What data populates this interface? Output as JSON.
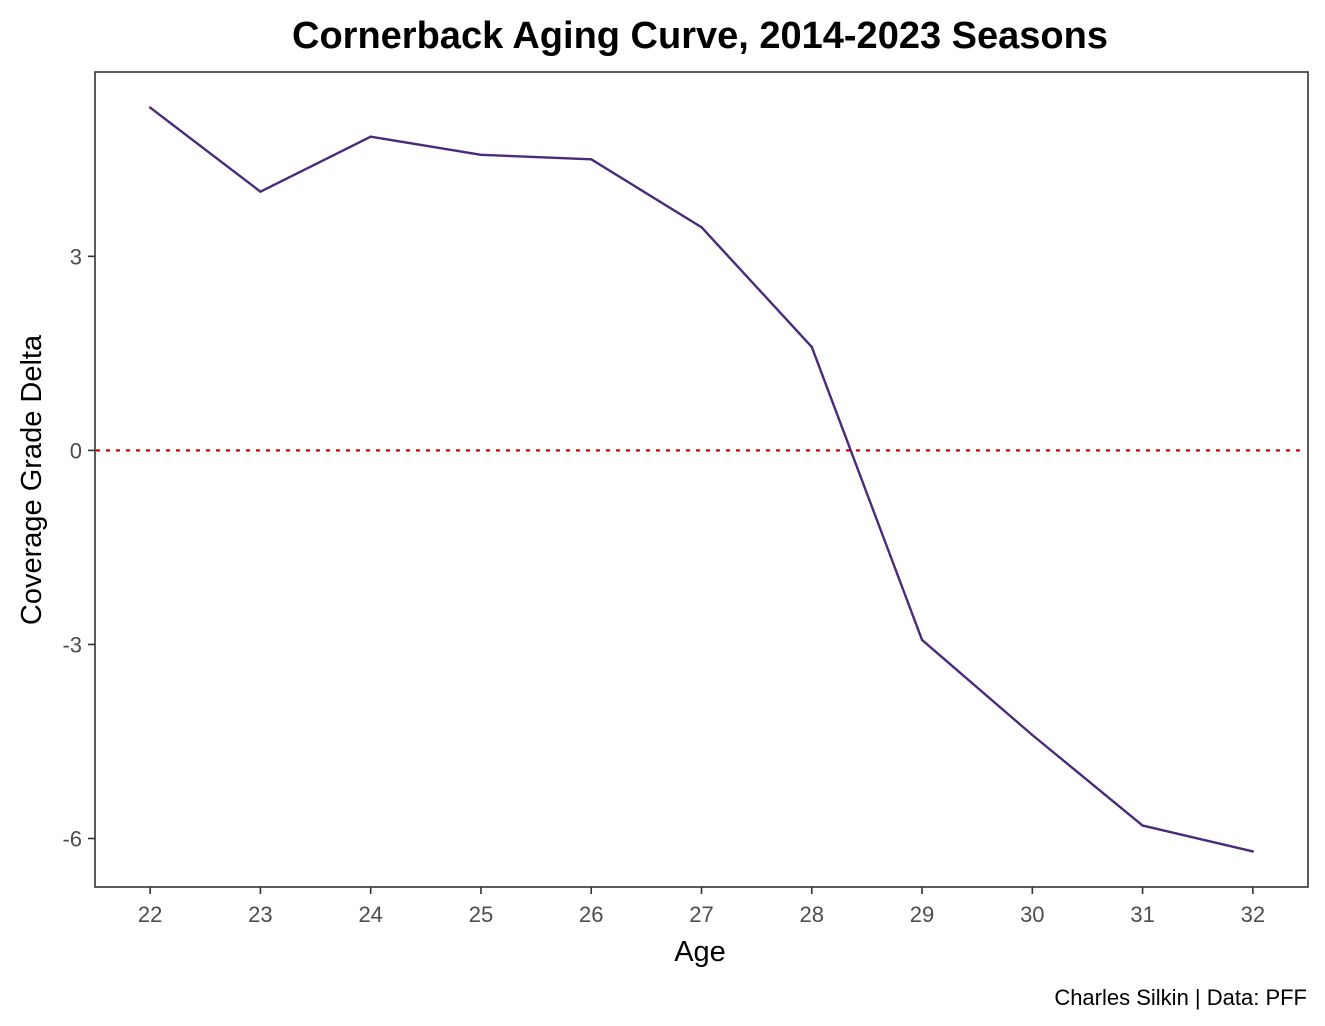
{
  "chart_data": {
    "type": "line",
    "title": "Cornerback Aging Curve, 2014-2023 Seasons",
    "xlabel": "Age",
    "ylabel": "Coverage Grade Delta",
    "caption": "Charles Silkin | Data: PFF",
    "x": [
      22,
      23,
      24,
      25,
      26,
      27,
      28,
      29,
      30,
      31,
      32
    ],
    "series": [
      {
        "values": [
          5.3,
          4.0,
          4.85,
          4.57,
          4.5,
          3.45,
          1.6,
          -2.93,
          -4.4,
          -5.8,
          -6.2
        ],
        "color": "#4b2a7b"
      }
    ],
    "xticks": [
      "22",
      "23",
      "24",
      "25",
      "26",
      "27",
      "28",
      "29",
      "30",
      "31",
      "32"
    ],
    "yticks": [
      "-6",
      "-3",
      "0",
      "3"
    ],
    "ytick_values": [
      -6,
      -3,
      0,
      3
    ],
    "xlim": [
      21.5,
      32.5
    ],
    "ylim": [
      -6.75,
      5.85
    ],
    "reference_line": {
      "y": 0,
      "style": "dotted",
      "color": "#cc0000"
    },
    "grid": false,
    "legend": "none"
  }
}
